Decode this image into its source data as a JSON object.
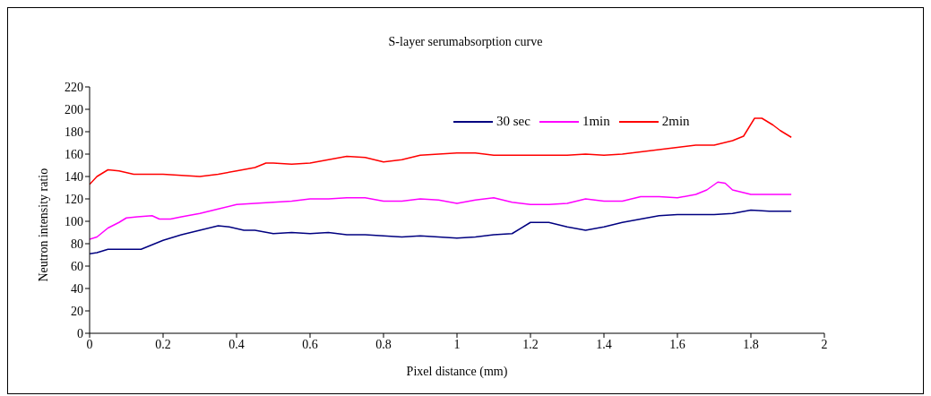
{
  "chart_data": {
    "type": "line",
    "title": "S-layer serumabsorption curve",
    "xlabel": "Pixel distance (mm)",
    "ylabel": "Neutron intensity ratio",
    "xlim": [
      0,
      2
    ],
    "xticks": [
      0,
      0.2,
      0.4,
      0.6,
      0.8,
      1,
      1.2,
      1.4,
      1.6,
      1.8,
      2
    ],
    "ylim": [
      0,
      220
    ],
    "yticks": [
      0,
      20,
      40,
      60,
      80,
      100,
      120,
      140,
      160,
      180,
      200,
      220
    ],
    "grid": false,
    "legend": "top right",
    "marker": "none",
    "line_style": "solid",
    "series": [
      {
        "name": "30 sec",
        "color": "#000080",
        "x": [
          0,
          0.02,
          0.05,
          0.1,
          0.14,
          0.2,
          0.25,
          0.3,
          0.35,
          0.38,
          0.42,
          0.45,
          0.5,
          0.55,
          0.6,
          0.65,
          0.7,
          0.75,
          0.8,
          0.85,
          0.9,
          0.95,
          1.0,
          1.05,
          1.1,
          1.15,
          1.2,
          1.25,
          1.3,
          1.35,
          1.4,
          1.45,
          1.5,
          1.55,
          1.6,
          1.65,
          1.7,
          1.75,
          1.8,
          1.85,
          1.9,
          1.91
        ],
        "values": [
          71,
          72,
          75,
          75,
          75,
          83,
          88,
          92,
          96,
          95,
          92,
          92,
          89,
          90,
          89,
          90,
          88,
          88,
          87,
          86,
          87,
          86,
          85,
          86,
          88,
          89,
          99,
          99,
          95,
          92,
          95,
          99,
          102,
          105,
          106,
          106,
          106,
          107,
          110,
          109,
          109,
          109
        ]
      },
      {
        "name": "1min",
        "color": "#ff00ff",
        "x": [
          0,
          0.02,
          0.05,
          0.08,
          0.1,
          0.13,
          0.17,
          0.19,
          0.22,
          0.25,
          0.3,
          0.35,
          0.4,
          0.45,
          0.5,
          0.55,
          0.6,
          0.65,
          0.7,
          0.75,
          0.8,
          0.85,
          0.9,
          0.95,
          1.0,
          1.05,
          1.1,
          1.15,
          1.2,
          1.25,
          1.3,
          1.35,
          1.4,
          1.45,
          1.5,
          1.55,
          1.6,
          1.65,
          1.68,
          1.71,
          1.73,
          1.75,
          1.8,
          1.85,
          1.91
        ],
        "values": [
          84,
          86,
          94,
          99,
          103,
          104,
          105,
          102,
          102,
          104,
          107,
          111,
          115,
          116,
          117,
          118,
          120,
          120,
          121,
          121,
          118,
          118,
          120,
          119,
          116,
          119,
          121,
          117,
          115,
          115,
          116,
          120,
          118,
          118,
          122,
          122,
          121,
          124,
          128,
          135,
          134,
          128,
          124,
          124,
          124
        ]
      },
      {
        "name": "2min",
        "color": "#ff0000",
        "x": [
          0,
          0.02,
          0.05,
          0.08,
          0.12,
          0.2,
          0.3,
          0.35,
          0.4,
          0.45,
          0.48,
          0.5,
          0.55,
          0.6,
          0.65,
          0.7,
          0.75,
          0.8,
          0.85,
          0.9,
          0.95,
          1.0,
          1.05,
          1.1,
          1.15,
          1.2,
          1.3,
          1.35,
          1.4,
          1.45,
          1.5,
          1.55,
          1.6,
          1.65,
          1.7,
          1.75,
          1.78,
          1.81,
          1.83,
          1.86,
          1.88,
          1.91
        ],
        "values": [
          133,
          140,
          146,
          145,
          142,
          142,
          140,
          142,
          145,
          148,
          152,
          152,
          151,
          152,
          155,
          158,
          157,
          153,
          155,
          159,
          160,
          161,
          161,
          159,
          159,
          159,
          159,
          160,
          159,
          160,
          162,
          164,
          166,
          168,
          168,
          172,
          176,
          192,
          192,
          186,
          181,
          175
        ]
      }
    ]
  }
}
